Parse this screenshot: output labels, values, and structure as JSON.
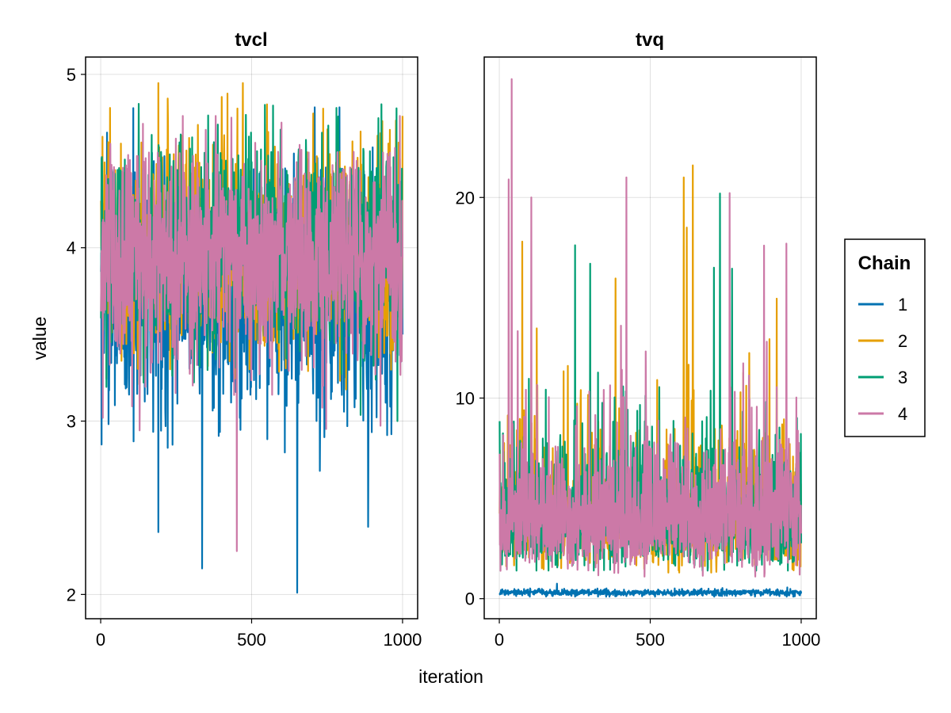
{
  "chart_data": {
    "type": "line",
    "xlabel": "iteration",
    "ylabel": "value",
    "legend": {
      "title": "Chain",
      "placement": "right",
      "entries": [
        "1",
        "2",
        "3",
        "4"
      ]
    },
    "series_colors": [
      "#0072b2",
      "#e69f00",
      "#009e73",
      "#cc79a7"
    ],
    "grid": true,
    "panels": [
      {
        "title": "tvcl",
        "xlim": [
          -50,
          1050
        ],
        "ylim": [
          1.86,
          5.1
        ],
        "xticks": [
          "0",
          "500",
          "1000"
        ],
        "yticks": [
          "2",
          "3",
          "4",
          "5"
        ],
        "series": [
          {
            "name": "1",
            "n_iterations": 1000,
            "mean": 3.75,
            "std": 0.35,
            "min": 2.01,
            "max": 4.81,
            "notable": [
              {
                "x": 335,
                "y": 2.15
              },
              {
                "x": 190,
                "y": 2.36
              },
              {
                "x": 650,
                "y": 2.01
              },
              {
                "x": 885,
                "y": 2.39
              },
              {
                "x": 790,
                "y": 4.81
              }
            ]
          },
          {
            "name": "2",
            "n_iterations": 1000,
            "mean": 4.0,
            "std": 0.3,
            "min": 3.0,
            "max": 4.95,
            "notable": [
              {
                "x": 190,
                "y": 4.95
              },
              {
                "x": 400,
                "y": 4.87
              },
              {
                "x": 1000,
                "y": 4.76
              },
              {
                "x": 5,
                "y": 4.64
              }
            ]
          },
          {
            "name": "3",
            "n_iterations": 1000,
            "mean": 4.0,
            "std": 0.3,
            "min": 3.0,
            "max": 4.83,
            "notable": [
              {
                "x": 125,
                "y": 4.83
              },
              {
                "x": 570,
                "y": 4.82
              }
            ]
          },
          {
            "name": "4",
            "n_iterations": 1000,
            "mean": 3.95,
            "std": 0.3,
            "min": 2.25,
            "max": 4.76,
            "notable": [
              {
                "x": 450,
                "y": 2.25
              },
              {
                "x": 990,
                "y": 4.76
              }
            ]
          }
        ]
      },
      {
        "title": "tvq",
        "xlim": [
          -50,
          1050
        ],
        "ylim": [
          -1.0,
          27.0
        ],
        "xticks": [
          "0",
          "500",
          "1000"
        ],
        "yticks": [
          "0",
          "10",
          "20"
        ],
        "series": [
          {
            "name": "1",
            "n_iterations": 1000,
            "mean": 0.3,
            "std": 0.08,
            "min": 0.1,
            "max": 0.75,
            "notable": [
              {
                "x": 190,
                "y": 0.75
              }
            ]
          },
          {
            "name": "2",
            "n_iterations": 1000,
            "mean": 4.5,
            "std": 1.8,
            "min": 1.3,
            "max": 21.6,
            "notable": [
              {
                "x": 640,
                "y": 21.6
              },
              {
                "x": 610,
                "y": 21.0
              },
              {
                "x": 75,
                "y": 17.8
              },
              {
                "x": 620,
                "y": 18.5
              }
            ]
          },
          {
            "name": "3",
            "n_iterations": 1000,
            "mean": 4.5,
            "std": 1.8,
            "min": 1.4,
            "max": 20.2,
            "notable": [
              {
                "x": 730,
                "y": 20.2
              },
              {
                "x": 300,
                "y": 16.7
              },
              {
                "x": 710,
                "y": 16.5
              }
            ]
          },
          {
            "name": "4",
            "n_iterations": 1000,
            "mean": 4.5,
            "std": 1.8,
            "min": 1.1,
            "max": 25.9,
            "notable": [
              {
                "x": 40,
                "y": 25.9
              },
              {
                "x": 30,
                "y": 20.9
              },
              {
                "x": 105,
                "y": 20.0
              },
              {
                "x": 420,
                "y": 21.0
              },
              {
                "x": 950,
                "y": 17.7
              }
            ]
          }
        ]
      }
    ]
  }
}
